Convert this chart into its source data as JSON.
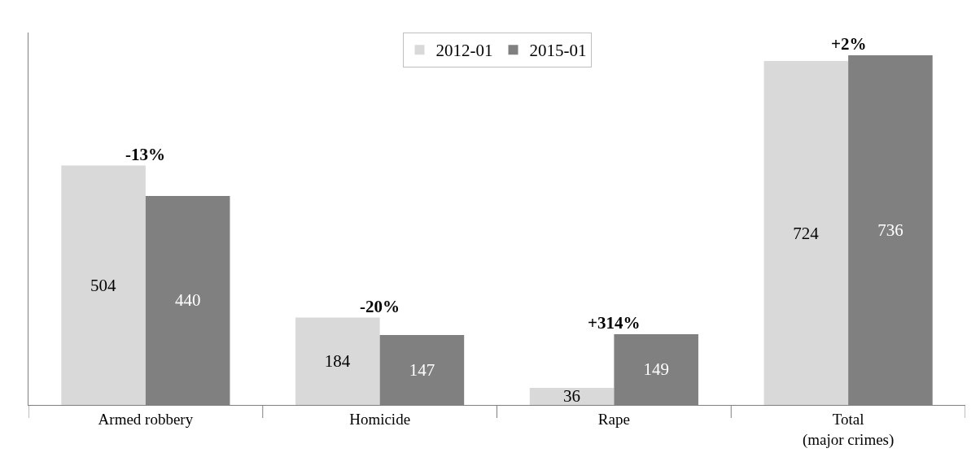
{
  "chart_data": {
    "type": "bar",
    "categories": [
      "Armed robbery",
      "Homicide",
      "Rape",
      "Total\n(major crimes)"
    ],
    "series": [
      {
        "name": "2012-01",
        "color": "#d9d9d9",
        "values": [
          504,
          184,
          36,
          724
        ]
      },
      {
        "name": "2015-01",
        "color": "#808080",
        "values": [
          440,
          147,
          149,
          736
        ]
      }
    ],
    "data_labels": true,
    "legend": "top",
    "grid": false,
    "annotations": [
      {
        "text": "-13%",
        "x": "Armed robbery",
        "y": 504
      },
      {
        "text": "-20%",
        "x": "Homicide",
        "y": 184
      },
      {
        "text": "+314%",
        "x": "Rape",
        "y": 149
      },
      {
        "text": "+2%",
        "x": "Total\n(major crimes)",
        "y": 736
      }
    ]
  }
}
